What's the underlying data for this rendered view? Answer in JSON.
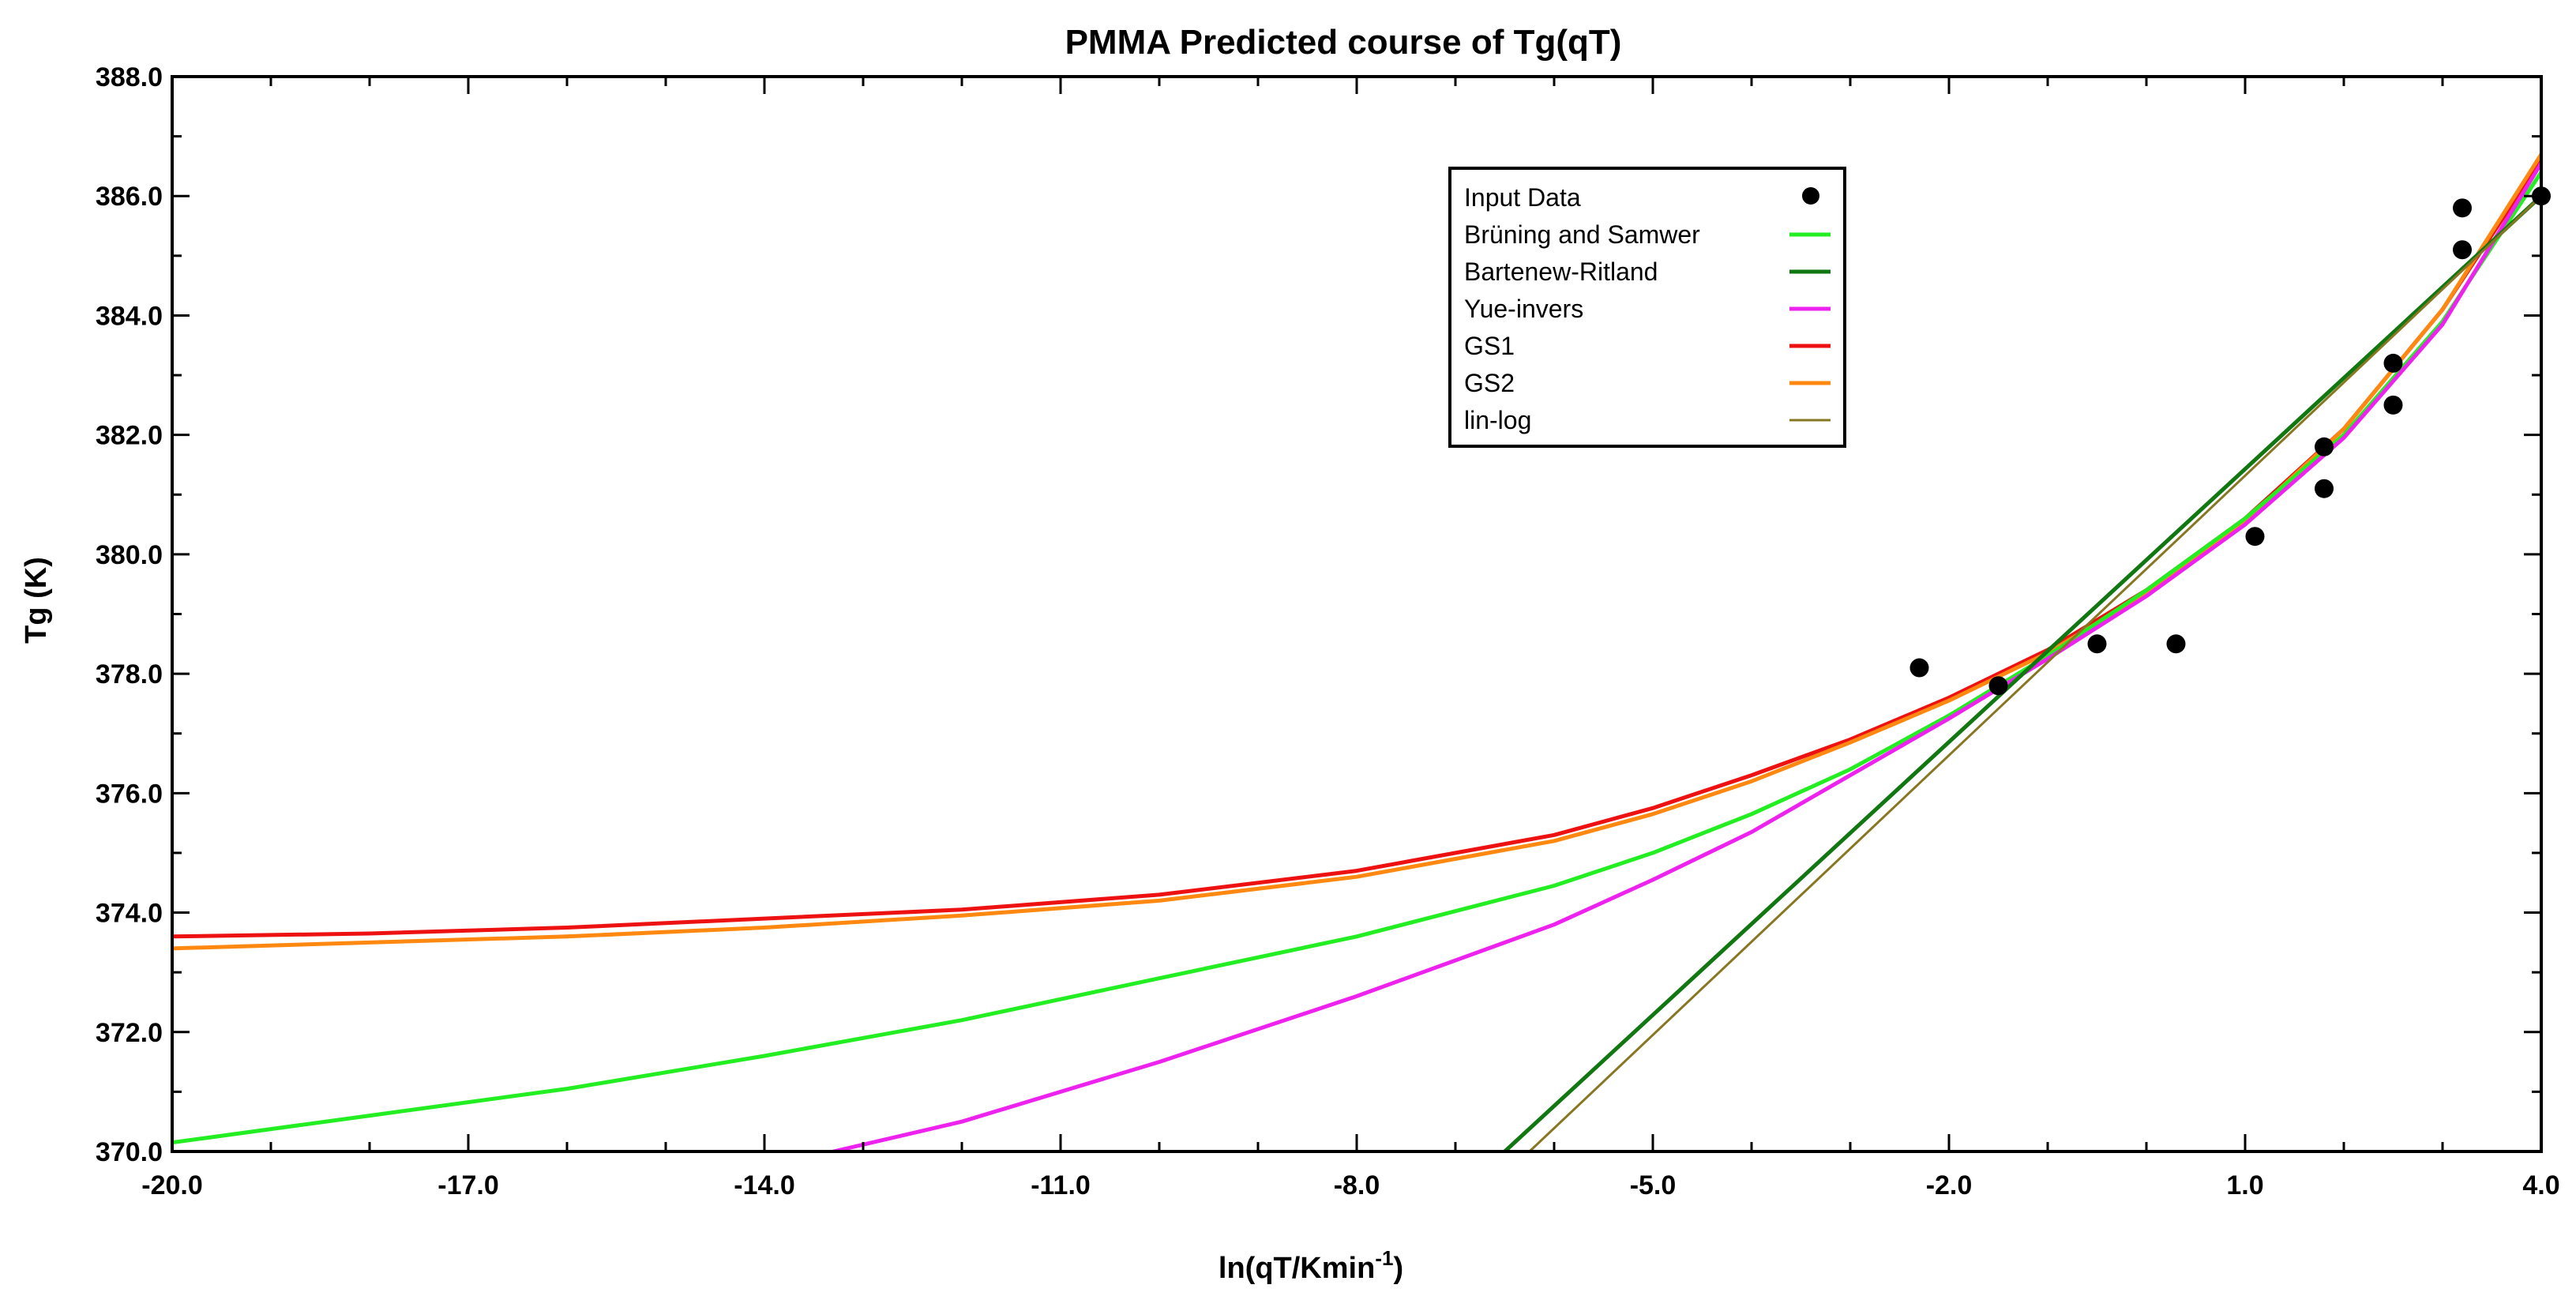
{
  "chart_data": {
    "type": "line",
    "title": "PMMA Predicted course of Tg(qT)",
    "xlabel": "ln(qT/Kmin",
    "xlabel_sup": "-1",
    "xlabel_end": ")",
    "ylabel": "Tg (K)",
    "xlim": [
      -20,
      4
    ],
    "ylim": [
      370,
      388
    ],
    "x_ticks": [
      -20,
      -17,
      -14,
      -11,
      -8,
      -5,
      -2,
      1,
      4
    ],
    "x_tick_labels": [
      "-20.0",
      "-17.0",
      "-14.0",
      "-11.0",
      "-8.0",
      "-5.0",
      "-2.0",
      "1.0",
      "4.0"
    ],
    "y_ticks": [
      370,
      372,
      374,
      376,
      378,
      380,
      382,
      384,
      386,
      388
    ],
    "y_tick_labels": [
      "370.0",
      "372.0",
      "374.0",
      "376.0",
      "378.0",
      "380.0",
      "382.0",
      "384.0",
      "386.0",
      "388.0"
    ],
    "legend_position": "top-center",
    "legend": [
      {
        "name": "Input Data",
        "color": "#000000",
        "kind": "marker"
      },
      {
        "name": "Brüning and Samwer",
        "color": "#22ee22",
        "kind": "line"
      },
      {
        "name": "Bartenew-Ritland",
        "color": "#117711",
        "kind": "line"
      },
      {
        "name": "Yue-invers",
        "color": "#ee22ee",
        "kind": "line"
      },
      {
        "name": "GS1",
        "color": "#ee1111",
        "kind": "line"
      },
      {
        "name": "GS2",
        "color": "#ff8811",
        "kind": "line"
      },
      {
        "name": "lin-log",
        "color": "#887722",
        "kind": "line"
      }
    ],
    "scatter": {
      "name": "Input Data",
      "color": "#000000",
      "points": [
        [
          -2.3,
          378.1
        ],
        [
          -1.5,
          377.8
        ],
        [
          -0.5,
          378.5
        ],
        [
          0.3,
          378.5
        ],
        [
          1.1,
          380.3
        ],
        [
          1.8,
          381.8
        ],
        [
          1.8,
          381.1
        ],
        [
          2.5,
          383.2
        ],
        [
          2.5,
          382.5
        ],
        [
          3.2,
          385.8
        ],
        [
          3.2,
          385.1
        ],
        [
          4.0,
          386.0
        ]
      ]
    },
    "series": [
      {
        "name": "GS1",
        "color": "#ee1111",
        "x": [
          -20,
          -18,
          -16,
          -14,
          -12,
          -10,
          -8,
          -6,
          -5,
          -4,
          -3,
          -2,
          -1,
          0,
          1,
          2,
          3,
          4
        ],
        "y": [
          373.6,
          373.65,
          373.75,
          373.9,
          374.05,
          374.3,
          374.7,
          375.3,
          375.75,
          376.3,
          376.9,
          377.6,
          378.4,
          379.4,
          380.6,
          382.1,
          384.1,
          386.6
        ]
      },
      {
        "name": "GS2",
        "color": "#ff8811",
        "x": [
          -20,
          -18,
          -16,
          -14,
          -12,
          -10,
          -8,
          -6,
          -5,
          -4,
          -3,
          -2,
          -1,
          0,
          1,
          2,
          3,
          4
        ],
        "y": [
          373.4,
          373.5,
          373.6,
          373.75,
          373.95,
          374.2,
          374.6,
          375.2,
          375.65,
          376.2,
          376.85,
          377.55,
          378.35,
          379.35,
          380.55,
          382.1,
          384.1,
          386.7
        ]
      },
      {
        "name": "Brüning and Samwer",
        "color": "#22ee22",
        "x": [
          -20,
          -18,
          -16,
          -14,
          -12,
          -10,
          -8,
          -6,
          -5,
          -4,
          -3,
          -2,
          -1,
          0,
          1,
          2,
          3,
          4
        ],
        "y": [
          370.15,
          370.6,
          371.05,
          371.6,
          372.2,
          372.9,
          373.6,
          374.45,
          375.0,
          375.65,
          376.4,
          377.3,
          378.3,
          379.4,
          380.6,
          382.0,
          383.9,
          386.4
        ]
      },
      {
        "name": "Yue-invers",
        "color": "#ee22ee",
        "x": [
          -13.3,
          -12,
          -10,
          -8,
          -6,
          -5,
          -4,
          -3,
          -2,
          -1,
          0,
          1,
          2,
          3,
          4
        ],
        "y": [
          370.0,
          370.5,
          371.5,
          372.6,
          373.8,
          374.55,
          375.35,
          376.3,
          377.25,
          378.25,
          379.3,
          380.5,
          381.95,
          383.85,
          386.55
        ]
      },
      {
        "name": "Bartenew-Ritland",
        "color": "#117711",
        "x": [
          -6.5,
          4
        ],
        "y": [
          370.0,
          386.0
        ]
      },
      {
        "name": "lin-log",
        "color": "#887722",
        "x": [
          -6.25,
          4
        ],
        "y": [
          370.0,
          386.0
        ]
      }
    ]
  }
}
